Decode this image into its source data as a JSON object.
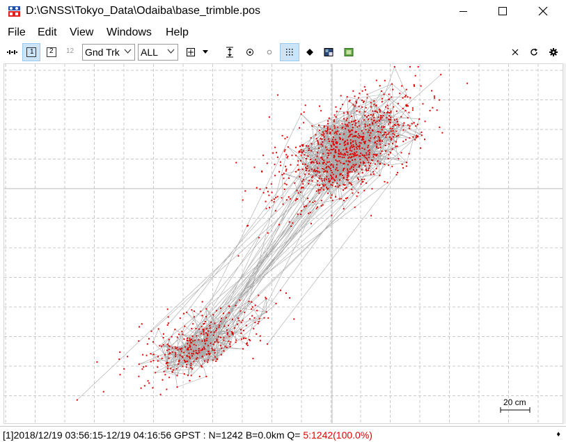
{
  "window": {
    "title": "D:\\GNSS\\Tokyo_Data\\Odaiba\\base_trimble.pos"
  },
  "menu": {
    "items": [
      "File",
      "Edit",
      "View",
      "Windows",
      "Help"
    ]
  },
  "toolbar": {
    "btn_1": "1",
    "btn_2": "2",
    "btn_12": "12",
    "plot_type": "Gnd Trk",
    "sat_select": "ALL"
  },
  "plot": {
    "scale_label": "20 cm",
    "point_color": "#e00000",
    "line_color": "#a8a8a8",
    "grid_color": "#c8c8c8"
  },
  "status": {
    "text": "[1]2018/12/19 03:56:15-12/19 04:16:56 GPST : N=1242 B=0.0km Q= ",
    "quality": "5:1242(100.0%)",
    "quality_color": "#e00000"
  }
}
